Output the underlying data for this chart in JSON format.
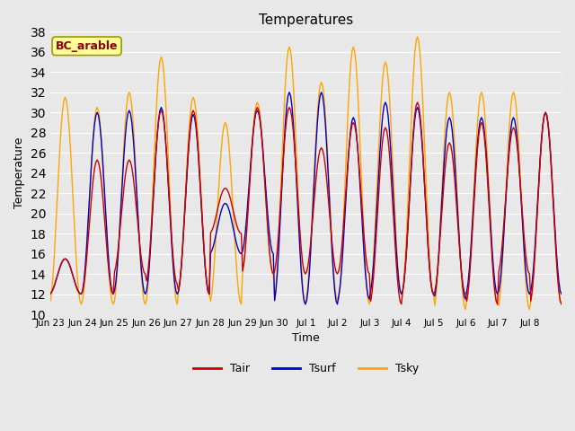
{
  "title": "Temperatures",
  "xlabel": "Time",
  "ylabel": "Temperature",
  "ylim": [
    10,
    38
  ],
  "annotation": "BC_arable",
  "annotation_color": "#8B0000",
  "annotation_bg": "#FFFF99",
  "annotation_border": "#999900",
  "line_colors": {
    "Tair": "#CC0000",
    "Tsurf": "#0000CC",
    "Tsky": "#FFA500"
  },
  "bg_color": "#E8E8E8",
  "tick_labels": [
    "Jun 23",
    "Jun 24",
    "Jun 25",
    "Jun 26",
    "Jun 27",
    "Jun 28",
    "Jun 29",
    "Jun 30",
    "Jul 1",
    "Jul 2",
    "Jul 3",
    "Jul 4",
    "Jul 5",
    "Jul 6",
    "Jul 7",
    "Jul 8"
  ],
  "n_days": 16
}
